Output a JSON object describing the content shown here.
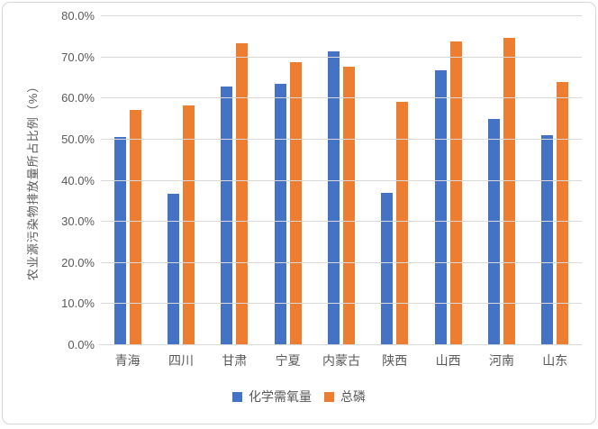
{
  "chart_data": {
    "type": "bar",
    "title": "",
    "xlabel": "",
    "ylabel": "农业源污染物排放量所占比例（%）",
    "ylim": [
      0,
      80
    ],
    "y_tick_step": 10,
    "y_tick_labels": [
      "0.0%",
      "10.0%",
      "20.0%",
      "30.0%",
      "40.0%",
      "50.0%",
      "60.0%",
      "70.0%",
      "80.0%"
    ],
    "grid": true,
    "legend_position": "bottom-center",
    "categories": [
      "青海",
      "四川",
      "甘肃",
      "宁夏",
      "内蒙古",
      "陕西",
      "山西",
      "河南",
      "山东"
    ],
    "series": [
      {
        "name": "化学需氧量",
        "color": "#4472C4",
        "values": [
          50.7,
          36.8,
          63.0,
          63.5,
          71.4,
          37.0,
          66.8,
          55.1,
          51.1
        ]
      },
      {
        "name": "总磷",
        "color": "#ED7D31",
        "values": [
          57.2,
          58.2,
          73.5,
          68.8,
          67.7,
          59.2,
          73.8,
          74.8,
          64.1
        ]
      }
    ],
    "colors": {
      "series_blue": "#4472C4",
      "series_orange": "#ED7D31",
      "gridline": "#D9D9D9",
      "axis_text": "#595959",
      "frame_border": "#D6D6D6",
      "background": "#FFFFFF"
    }
  }
}
